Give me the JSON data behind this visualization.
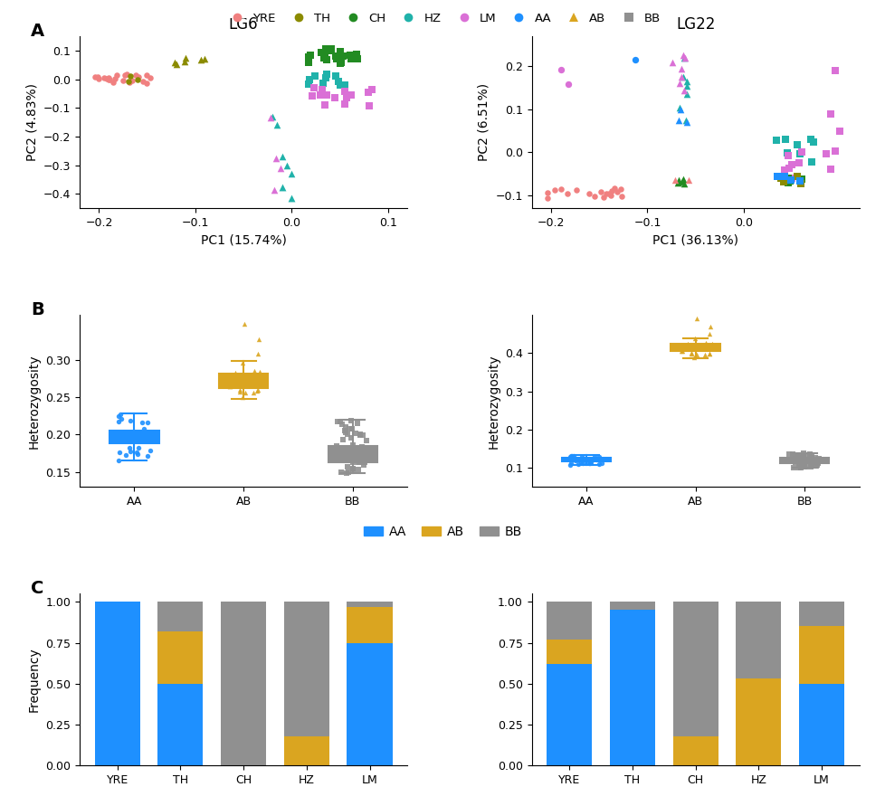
{
  "colors": {
    "YRE": "#F08080",
    "TH": "#8B8B00",
    "CH": "#228B22",
    "HZ": "#20B2AA",
    "LM": "#DA70D6",
    "AA": "#1E90FF",
    "AB": "#DAA520",
    "BB": "#909090"
  },
  "legend_top": {
    "entries": [
      "YRE",
      "TH",
      "CH",
      "HZ",
      "LM",
      "AA",
      "AB",
      "BB"
    ],
    "markers": [
      "o",
      "o",
      "o",
      "o",
      "o",
      "o",
      "^",
      "s"
    ]
  },
  "pca_LG6": {
    "title": "LG6",
    "xlabel": "PC1 (15.74%)",
    "ylabel": "PC2 (4.83%)",
    "xlim": [
      -0.22,
      0.12
    ],
    "ylim": [
      -0.45,
      0.15
    ],
    "xticks": [
      -0.2,
      -0.1,
      0.0,
      0.1
    ],
    "yticks": [
      -0.4,
      -0.3,
      -0.2,
      -0.1,
      0.0,
      0.1
    ]
  },
  "pca_LG22": {
    "title": "LG22",
    "xlabel": "PC1 (36.13%)",
    "ylabel": "PC2 (6.51%)",
    "xlim": [
      -0.22,
      0.12
    ],
    "ylim": [
      -0.13,
      0.27
    ],
    "xticks": [
      -0.2,
      -0.1,
      0.0
    ],
    "yticks": [
      -0.1,
      0.0,
      0.1,
      0.2
    ]
  },
  "boxplot_LG6": {
    "ylabel": "Heterozygosity",
    "ylim": [
      0.13,
      0.36
    ],
    "yticks": [
      0.15,
      0.2,
      0.25,
      0.3
    ],
    "AA": {
      "median": 0.196,
      "q1": 0.188,
      "q3": 0.205,
      "whislo": 0.165,
      "whishi": 0.228
    },
    "AB": {
      "median": 0.272,
      "q1": 0.262,
      "q3": 0.282,
      "whislo": 0.248,
      "whishi": 0.298
    },
    "BB": {
      "median": 0.173,
      "q1": 0.163,
      "q3": 0.185,
      "whislo": 0.148,
      "whishi": 0.22
    }
  },
  "boxplot_LG22": {
    "ylabel": "Heterozygosity",
    "ylim": [
      0.05,
      0.5
    ],
    "yticks": [
      0.1,
      0.2,
      0.3,
      0.4
    ],
    "AA": {
      "median": 0.122,
      "q1": 0.117,
      "q3": 0.127,
      "whislo": 0.108,
      "whishi": 0.133
    },
    "AB": {
      "median": 0.415,
      "q1": 0.405,
      "q3": 0.425,
      "whislo": 0.388,
      "whishi": 0.44
    },
    "BB": {
      "median": 0.118,
      "q1": 0.112,
      "q3": 0.127,
      "whislo": 0.1,
      "whishi": 0.138
    }
  },
  "barplot_LG6": {
    "categories": [
      "YRE",
      "TH",
      "CH",
      "HZ",
      "LM"
    ],
    "AA": [
      1.0,
      0.5,
      0.0,
      0.0,
      0.75
    ],
    "AB": [
      0.0,
      0.32,
      0.0,
      0.18,
      0.22
    ],
    "BB": [
      0.0,
      0.18,
      1.0,
      0.82,
      0.03
    ]
  },
  "barplot_LG22": {
    "categories": [
      "YRE",
      "TH",
      "CH",
      "HZ",
      "LM"
    ],
    "AA": [
      0.62,
      0.95,
      0.0,
      0.0,
      0.5
    ],
    "AB": [
      0.15,
      0.0,
      0.18,
      0.53,
      0.35
    ],
    "BB": [
      0.23,
      0.05,
      0.82,
      0.47,
      0.15
    ]
  },
  "bar_colors": {
    "AA": "#1E90FF",
    "AB": "#DAA520",
    "BB": "#909090"
  }
}
